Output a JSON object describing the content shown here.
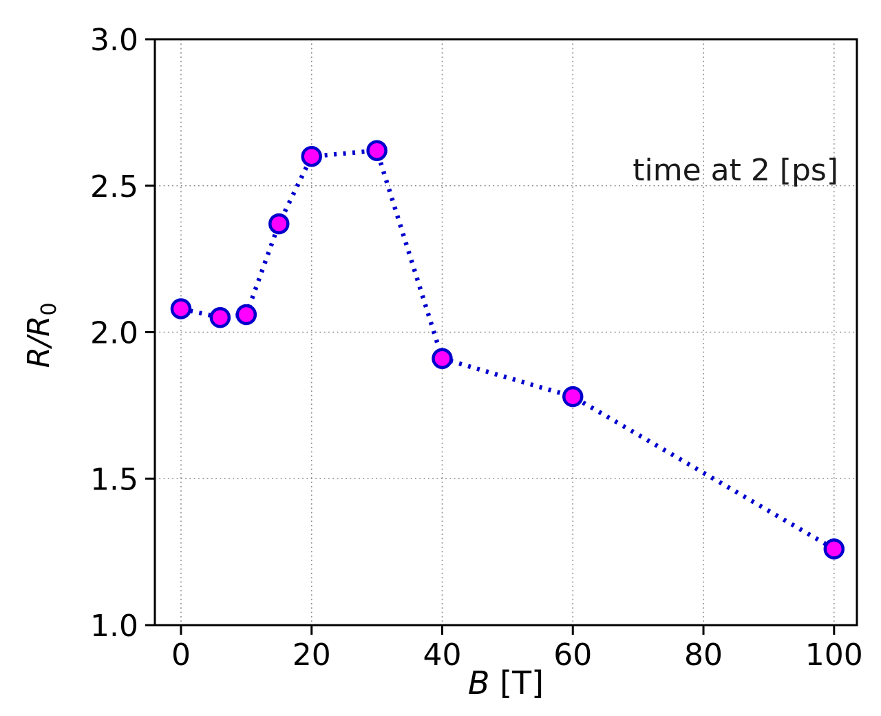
{
  "figure": {
    "annotation": "time at 2 [ps]",
    "xlabel_var": "B",
    "xlabel_unit": " [T]",
    "ylabel_main": "R/R",
    "ylabel_sub": "0"
  },
  "chart_data": {
    "type": "line",
    "x": [
      0,
      6,
      10,
      15,
      20,
      30,
      40,
      60,
      100
    ],
    "y": [
      2.08,
      2.05,
      2.06,
      2.37,
      2.6,
      2.62,
      1.91,
      1.78,
      1.26
    ],
    "title": "",
    "xlabel": "B [T]",
    "ylabel": "R/R_0",
    "annotation": "time at 2 [ps]",
    "xticks": [
      0,
      20,
      40,
      60,
      80,
      100
    ],
    "yticks": [
      1.0,
      1.5,
      2.0,
      2.5,
      3.0
    ],
    "xlim": [
      -4,
      103.5
    ],
    "ylim": [
      1.0,
      3.0
    ],
    "grid": true,
    "legend": "none",
    "line_style": "dotted",
    "marker": "circle",
    "line_color": "#0000CD",
    "marker_face": "#FF00FF",
    "marker_edge": "#0000CD",
    "grid_color": "#8a8a8a",
    "spine_color": "#000000"
  }
}
